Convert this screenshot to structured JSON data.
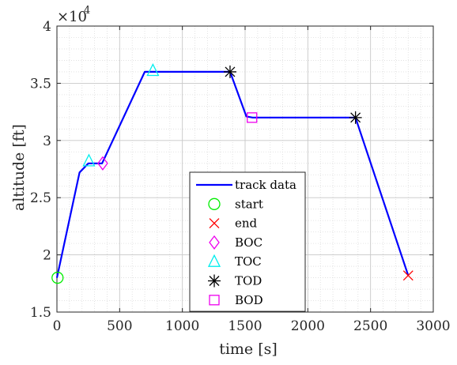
{
  "chart_data": {
    "type": "line",
    "xlabel": "time [s]",
    "ylabel": "altitude [ft]",
    "xlim": [
      0,
      3000
    ],
    "ylim": [
      15000,
      40000
    ],
    "x_ticks": [
      0,
      500,
      1000,
      1500,
      2000,
      2500,
      3000
    ],
    "x_tick_labels": [
      "0",
      "500",
      "1000",
      "1500",
      "2000",
      "2500",
      "3000"
    ],
    "y_ticks": [
      15000,
      20000,
      25000,
      30000,
      35000,
      40000
    ],
    "y_tick_labels": [
      "1.5",
      "2",
      "2.5",
      "3",
      "3.5",
      "4"
    ],
    "y_exponent": {
      "base": "×10",
      "power": "4"
    },
    "grid": true,
    "minor_grid": true,
    "legend_position": "inside-bottom-center",
    "series": [
      {
        "name": "track data",
        "kind": "line",
        "color": "#0000ff",
        "x": [
          0,
          180,
          250,
          360,
          700,
          760,
          1380,
          1510,
          1560,
          2380,
          2800
        ],
        "y": [
          18000,
          27200,
          28000,
          28000,
          36000,
          36000,
          36000,
          32100,
          32000,
          32000,
          18200
        ]
      },
      {
        "name": "start",
        "kind": "marker",
        "marker": "circle",
        "color": "#00ee00",
        "x": [
          5
        ],
        "y": [
          18000
        ]
      },
      {
        "name": "end",
        "kind": "marker",
        "marker": "x",
        "color": "#ff0000",
        "x": [
          2800
        ],
        "y": [
          18200
        ]
      },
      {
        "name": "BOC",
        "kind": "marker",
        "marker": "diamond",
        "color": "#ee00ee",
        "x": [
          365
        ],
        "y": [
          28000
        ]
      },
      {
        "name": "TOC",
        "kind": "marker",
        "marker": "triangle",
        "color": "#00eeee",
        "x": [
          255,
          765
        ],
        "y": [
          28200,
          36100
        ]
      },
      {
        "name": "TOD",
        "kind": "marker",
        "marker": "asterisk",
        "color": "#000000",
        "x": [
          1380,
          2380
        ],
        "y": [
          36000,
          32000
        ]
      },
      {
        "name": "BOD",
        "kind": "marker",
        "marker": "square",
        "color": "#ee00ee",
        "x": [
          1555
        ],
        "y": [
          32000
        ]
      }
    ]
  }
}
